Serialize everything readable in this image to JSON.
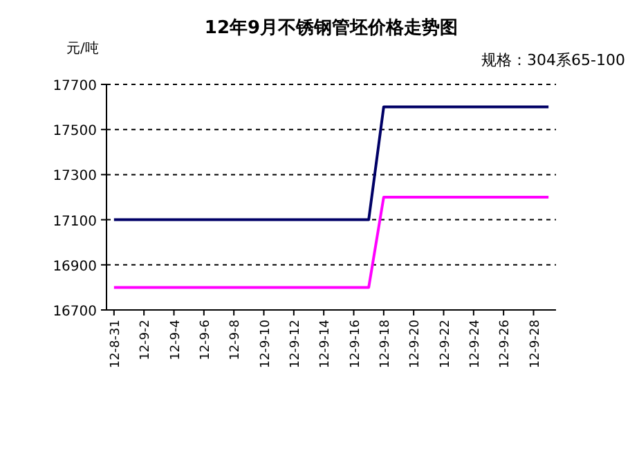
{
  "chart_data": {
    "type": "line",
    "title": "12年9月不锈钢管坯价格走势图",
    "subtitle": "规格：304系65-100",
    "ylabel": "元/吨",
    "categories": [
      "12-8-31",
      null,
      "12-9-2",
      null,
      "12-9-4",
      null,
      "12-9-6",
      null,
      "12-9-8",
      null,
      "12-9-10",
      null,
      "12-9-12",
      null,
      "12-9-14",
      null,
      "12-9-16",
      null,
      "12-9-18",
      null,
      "12-9-20",
      null,
      "12-9-22",
      null,
      "12-9-24",
      null,
      "12-9-26",
      null,
      "12-9-28",
      null
    ],
    "series": [
      {
        "color": "#000066",
        "values": [
          17100,
          17100,
          17100,
          17100,
          17100,
          17100,
          17100,
          17100,
          17100,
          17100,
          17100,
          17100,
          17100,
          17100,
          17100,
          17100,
          17100,
          17100,
          17600,
          17600,
          17600,
          17600,
          17600,
          17600,
          17600,
          17600,
          17600,
          17600,
          17600,
          17600
        ]
      },
      {
        "color": "#ff00ff",
        "values": [
          16800,
          16800,
          16800,
          16800,
          16800,
          16800,
          16800,
          16800,
          16800,
          16800,
          16800,
          16800,
          16800,
          16800,
          16800,
          16800,
          16800,
          16800,
          17200,
          17200,
          17200,
          17200,
          17200,
          17200,
          17200,
          17200,
          17200,
          17200,
          17200,
          17200
        ]
      }
    ],
    "ylim": [
      16700,
      17700
    ],
    "yticks": [
      16700,
      16900,
      17100,
      17300,
      17500,
      17700
    ],
    "grid": "y",
    "line_style": "solid",
    "marker": "none"
  }
}
